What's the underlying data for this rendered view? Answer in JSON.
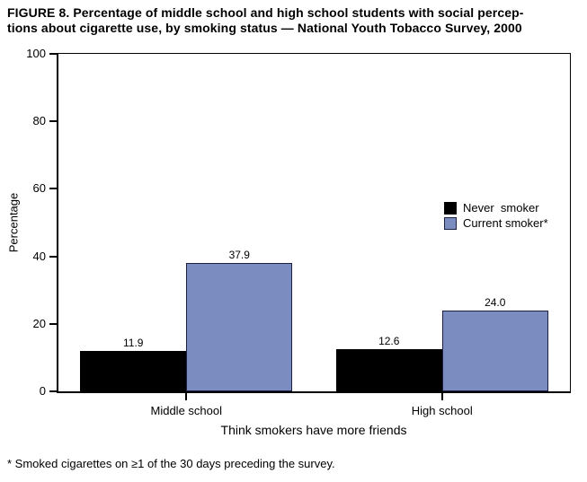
{
  "title": {
    "line1": "FIGURE 8. Percentage of middle school and high school students with social percep-",
    "line2": "tions about cigarette use, by smoking status — National Youth Tobacco Survey, 2000"
  },
  "footnote": "* Smoked cigarettes on ≥1 of the 30 days preceding the survey.",
  "chart_data": {
    "type": "bar",
    "title": "FIGURE 8. Percentage of middle school and high school students with social perceptions about cigarette use, by smoking status — National Youth Tobacco Survey, 2000",
    "categories": [
      "Middle school",
      "High school"
    ],
    "series": [
      {
        "name": "Never  smoker",
        "color": "#000000",
        "values": [
          11.9,
          12.6
        ]
      },
      {
        "name": "Current smoker*",
        "color": "#7b8cc1",
        "border_color": "#1c2040",
        "values": [
          37.9,
          24.0
        ]
      }
    ],
    "xlabel": "Think smokers have more friends",
    "ylabel": "Percentage",
    "ylim": [
      0,
      100
    ],
    "yticks": [
      0,
      20,
      40,
      60,
      80,
      100
    ],
    "grid": false,
    "legend_position": "right-middle",
    "value_labels": true,
    "value_label_format": "one_decimal"
  }
}
